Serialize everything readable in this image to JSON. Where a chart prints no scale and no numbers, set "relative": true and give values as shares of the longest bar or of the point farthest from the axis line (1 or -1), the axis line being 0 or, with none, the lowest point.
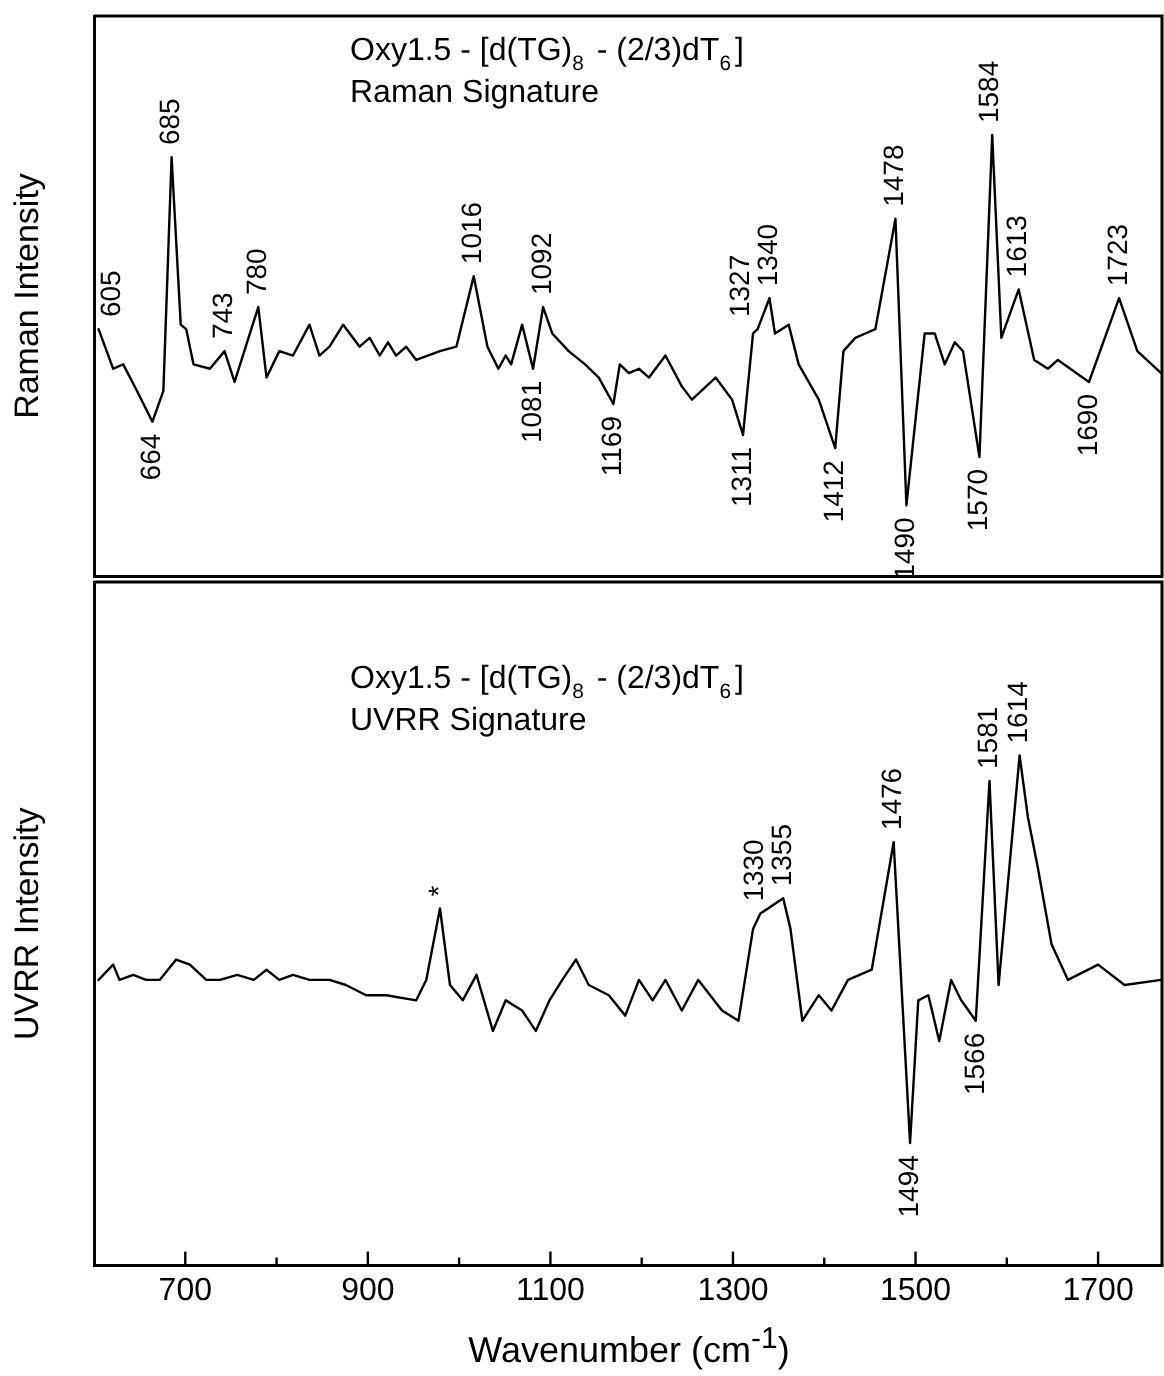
{
  "chart_data": [
    {
      "type": "line",
      "title": "Oxy1.5 - [d(TG)$_{8}$ - (2/3)dT$_{6}$]",
      "subtitle": "Raman Signature",
      "ylabel": "Raman Intensity",
      "relative": true,
      "xlim": [
        600,
        1770
      ],
      "tick_labels": false,
      "marker": "none",
      "line_style": "solid",
      "series": [
        {
          "color": "#000000",
          "x": [
            605,
            621,
            632,
            647,
            664,
            676,
            685,
            695,
            701,
            709,
            727,
            743,
            754,
            780,
            789,
            803,
            818,
            836,
            847,
            858,
            873,
            891,
            902,
            913,
            922,
            931,
            942,
            953,
            979,
            997,
            1016,
            1031,
            1043,
            1051,
            1057,
            1069,
            1081,
            1092,
            1102,
            1120,
            1138,
            1153,
            1169,
            1176,
            1186,
            1197,
            1208,
            1226,
            1244,
            1255,
            1281,
            1299,
            1311,
            1322,
            1327,
            1340,
            1346,
            1361,
            1372,
            1394,
            1412,
            1421,
            1434,
            1445,
            1456,
            1478,
            1490,
            1510,
            1521,
            1532,
            1543,
            1552,
            1570,
            1584,
            1594,
            1613,
            1630,
            1645,
            1656,
            1690,
            1723,
            1743,
            1769
          ],
          "values": [
            0.56,
            0.47,
            0.48,
            0.42,
            0.35,
            0.42,
            0.95,
            0.57,
            0.56,
            0.48,
            0.47,
            0.51,
            0.44,
            0.61,
            0.45,
            0.51,
            0.5,
            0.57,
            0.5,
            0.52,
            0.57,
            0.52,
            0.54,
            0.5,
            0.53,
            0.5,
            0.52,
            0.49,
            0.51,
            0.52,
            0.68,
            0.52,
            0.47,
            0.5,
            0.48,
            0.57,
            0.47,
            0.61,
            0.55,
            0.51,
            0.48,
            0.45,
            0.39,
            0.48,
            0.46,
            0.47,
            0.45,
            0.5,
            0.43,
            0.4,
            0.45,
            0.4,
            0.32,
            0.55,
            0.56,
            0.63,
            0.55,
            0.57,
            0.48,
            0.4,
            0.29,
            0.51,
            0.54,
            0.55,
            0.56,
            0.81,
            0.16,
            0.55,
            0.55,
            0.48,
            0.53,
            0.51,
            0.27,
            1,
            0.54,
            0.65,
            0.49,
            0.47,
            0.49,
            0.44,
            0.63,
            0.51,
            0.46
          ]
        }
      ],
      "annotations": [
        {
          "text": "605",
          "x": 605,
          "y": 0.56
        },
        {
          "text": "664",
          "x": 664,
          "y": 0.35
        },
        {
          "text": "685",
          "x": 685,
          "y": 0.95
        },
        {
          "text": "743",
          "x": 743,
          "y": 0.51
        },
        {
          "text": "780",
          "x": 780,
          "y": 0.61
        },
        {
          "text": "1016",
          "x": 1016,
          "y": 0.68
        },
        {
          "text": "1081",
          "x": 1081,
          "y": 0.47
        },
        {
          "text": "1092",
          "x": 1092,
          "y": 0.61
        },
        {
          "text": "1169",
          "x": 1169,
          "y": 0.39
        },
        {
          "text": "1311",
          "x": 1311,
          "y": 0.32
        },
        {
          "text": "1327",
          "x": 1327,
          "y": 0.56
        },
        {
          "text": "1340",
          "x": 1340,
          "y": 0.63
        },
        {
          "text": "1412",
          "x": 1412,
          "y": 0.29
        },
        {
          "text": "1478",
          "x": 1478,
          "y": 0.81
        },
        {
          "text": "1490",
          "x": 1490,
          "y": 0.16
        },
        {
          "text": "1570",
          "x": 1570,
          "y": 0.27
        },
        {
          "text": "1584",
          "x": 1584,
          "y": 1
        },
        {
          "text": "1613",
          "x": 1613,
          "y": 0.65
        },
        {
          "text": "1690",
          "x": 1690,
          "y": 0.44
        },
        {
          "text": "1723",
          "x": 1723,
          "y": 0.63
        }
      ]
    },
    {
      "type": "line",
      "title": "Oxy1.5 - [d(TG)$_{8}$ - (2/3)dT$_{6}$]",
      "subtitle": "UVRR Signature",
      "ylabel": "UVRR Intensity",
      "xlabel": "Wavenumber (cm$^{-1}$)",
      "relative": true,
      "xlim": [
        600,
        1770
      ],
      "tick_labels": "x",
      "marker": "none",
      "line_style": "solid",
      "xticks": [
        700,
        {
          "value": 800,
          "label": null
        },
        900,
        {
          "value": 1000,
          "label": null
        },
        1100,
        {
          "value": 1200,
          "label": null
        },
        1300,
        {
          "value": 1400,
          "label": null
        },
        1500,
        {
          "value": 1600,
          "label": null
        },
        1700
      ],
      "series": [
        {
          "color": "#000000",
          "x": [
            605,
            621,
            628,
            643,
            657,
            672,
            690,
            705,
            723,
            738,
            757,
            775,
            789,
            803,
            818,
            836,
            858,
            876,
            898,
            920,
            953,
            964,
            979,
            990,
            1004,
            1019,
            1037,
            1051,
            1069,
            1084,
            1099,
            1113,
            1128,
            1142,
            1164,
            1182,
            1197,
            1212,
            1226,
            1244,
            1262,
            1288,
            1306,
            1322,
            1330,
            1355,
            1363,
            1376,
            1394,
            1408,
            1426,
            1452,
            1476,
            1494,
            1503,
            1514,
            1526,
            1539,
            1550,
            1566,
            1581,
            1591,
            1614,
            1623,
            1634,
            1649,
            1667,
            1700,
            1729,
            1769
          ],
          "values": [
            0.56,
            0.59,
            0.56,
            0.57,
            0.56,
            0.56,
            0.6,
            0.59,
            0.56,
            0.56,
            0.57,
            0.56,
            0.58,
            0.56,
            0.57,
            0.56,
            0.56,
            0.55,
            0.53,
            0.53,
            0.52,
            0.56,
            0.7,
            0.55,
            0.52,
            0.57,
            0.46,
            0.52,
            0.5,
            0.46,
            0.52,
            0.56,
            0.6,
            0.55,
            0.53,
            0.49,
            0.56,
            0.52,
            0.56,
            0.5,
            0.56,
            0.5,
            0.48,
            0.66,
            0.69,
            0.72,
            0.66,
            0.48,
            0.53,
            0.5,
            0.56,
            0.58,
            0.83,
            0.24,
            0.52,
            0.53,
            0.44,
            0.56,
            0.52,
            0.48,
            0.95,
            0.55,
            1,
            0.88,
            0.78,
            0.63,
            0.56,
            0.59,
            0.55,
            0.56
          ]
        }
      ],
      "annotations": [
        {
          "text": "*",
          "x": 979,
          "y": 0.7
        },
        {
          "text": "1330",
          "x": 1330,
          "y": 0.69
        },
        {
          "text": "1355",
          "x": 1355,
          "y": 0.72
        },
        {
          "text": "1476",
          "x": 1476,
          "y": 0.83
        },
        {
          "text": "1494",
          "x": 1494,
          "y": 0.24
        },
        {
          "text": "1566",
          "x": 1566,
          "y": 0.48
        },
        {
          "text": "1581",
          "x": 1581,
          "y": 0.95
        },
        {
          "text": "1614",
          "x": 1614,
          "y": 1
        }
      ]
    }
  ]
}
